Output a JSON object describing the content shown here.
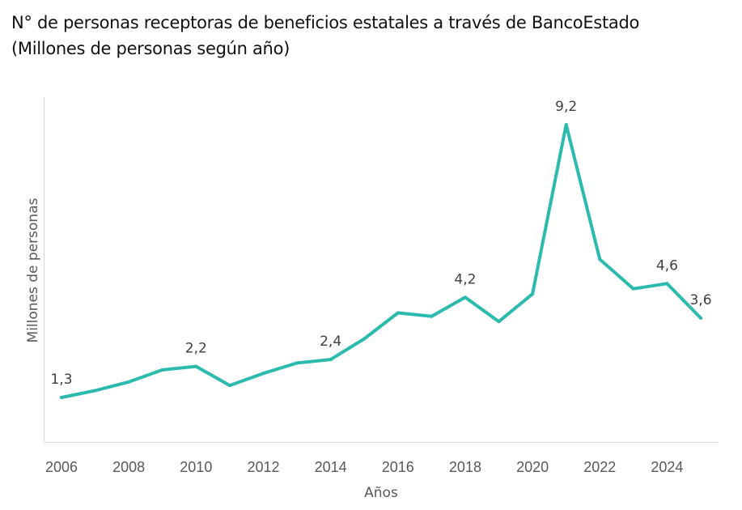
{
  "title_line1": "N° de personas receptoras de beneficios estatales a través de BancoEstado",
  "title_line2": "(Millones de personas según año)",
  "chart_data": {
    "type": "line",
    "title": "N° de personas receptoras de beneficios estatales a través de BancoEstado (Millones de personas según año)",
    "xlabel": "Años",
    "ylabel": "Millones de personas",
    "x": [
      2006,
      2007,
      2008,
      2009,
      2010,
      2011,
      2012,
      2013,
      2014,
      2015,
      2016,
      2017,
      2018,
      2019,
      2020,
      2021,
      2022,
      2023,
      2024,
      2025
    ],
    "series": [
      {
        "name": "Millones de personas",
        "color": "#2BBBAD",
        "values": [
          1.3,
          1.5,
          1.75,
          2.1,
          2.2,
          1.65,
          2.0,
          2.3,
          2.4,
          3.0,
          3.75,
          3.65,
          4.2,
          3.5,
          4.3,
          9.2,
          5.3,
          4.45,
          4.6,
          3.6
        ]
      }
    ],
    "x_ticks": [
      "2006",
      "2008",
      "2010",
      "2012",
      "2014",
      "2016",
      "2018",
      "2020",
      "2022",
      "2024"
    ],
    "x_tick_values": [
      2006,
      2008,
      2010,
      2012,
      2014,
      2016,
      2018,
      2020,
      2022,
      2024
    ],
    "data_labels": [
      {
        "x": 2006,
        "text": "1,3"
      },
      {
        "x": 2010,
        "text": "2,2"
      },
      {
        "x": 2014,
        "text": "2,4"
      },
      {
        "x": 2018,
        "text": "4,2"
      },
      {
        "x": 2021,
        "text": "9,2"
      },
      {
        "x": 2024,
        "text": "4,6"
      },
      {
        "x": 2025,
        "text": "3,6"
      }
    ],
    "ylim": [
      0,
      10
    ],
    "xlim": [
      2005.5,
      2025.5
    ],
    "grid": false,
    "legend": "none"
  }
}
